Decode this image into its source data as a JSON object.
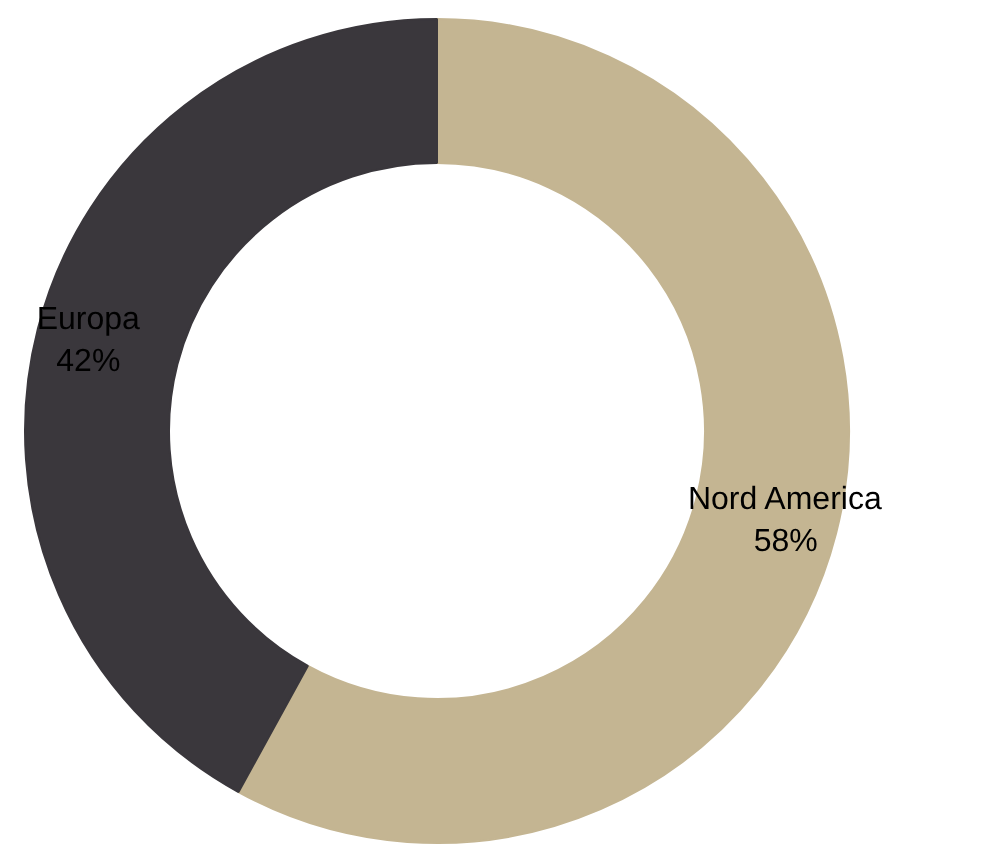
{
  "chart_data": {
    "type": "donut",
    "categories": [
      "Nord America",
      "Europa"
    ],
    "values": [
      58,
      42
    ],
    "colors": [
      "#c4b592",
      "#3a373c"
    ],
    "value_labels": [
      "58%",
      "42%"
    ]
  }
}
